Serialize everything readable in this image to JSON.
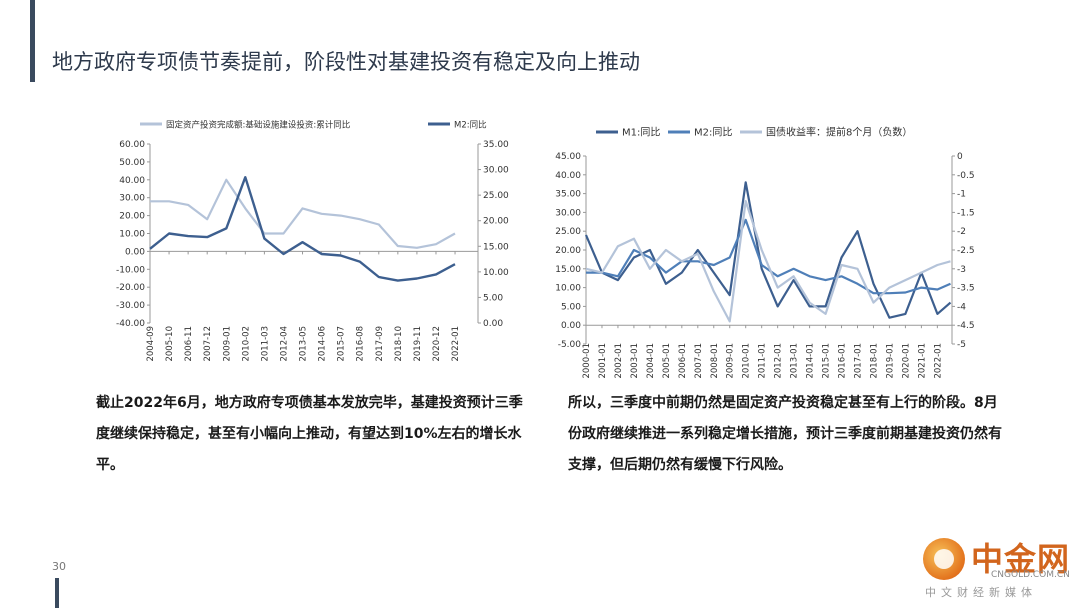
{
  "slide": {
    "title": "地方政府专项债节奏提前，阶段性对基建投资有稳定及向上推动",
    "page_number": "30",
    "paragraph_left": "截止2022年6月，地方政府专项债基本发放完毕，基建投资预计三季度继续保持稳定，甚至有小幅向上推动，有望达到10%左右的增长水平。",
    "paragraph_right": "所以，三季度中前期仍然是固定资产投资稳定甚至有上行的阶段。8月份政府继续推进一系列稳定增长措施，预计三季度前期基建投资仍然有支撑，但后期仍然有缓慢下行风险。"
  },
  "logo": {
    "name": "中金网",
    "url": "CNGOLD.COM.CN",
    "tagline": "中文财经新媒体"
  },
  "colors": {
    "dark_line": "#3d5f8f",
    "mid_line": "#4f7fb8",
    "light_line": "#b4c3d9",
    "accent": "#3a4a5e"
  },
  "chart_data": [
    {
      "type": "line",
      "legend_position": "top",
      "series": [
        {
          "name": "固定资产投资完成额:基础设施建设投资:累计同比",
          "axis": "left",
          "x": [
            "2004-09",
            "2005-10",
            "2006-11",
            "2007-12",
            "2009-01",
            "2010-02",
            "2011-03",
            "2012-04",
            "2013-05",
            "2014-06",
            "2015-07",
            "2016-08",
            "2017-09",
            "2018-10",
            "2019-11",
            "2020-12",
            "2022-01"
          ],
          "values": [
            28,
            28,
            26,
            18,
            40,
            24,
            10,
            10,
            24,
            21,
            20,
            18,
            15,
            3,
            2,
            4,
            10
          ]
        },
        {
          "name": "M2:同比",
          "axis": "right",
          "x": [
            "2004-09",
            "2005-10",
            "2006-11",
            "2007-12",
            "2009-01",
            "2010-02",
            "2011-03",
            "2012-04",
            "2013-05",
            "2014-06",
            "2015-07",
            "2016-08",
            "2017-09",
            "2018-10",
            "2019-11",
            "2020-12",
            "2022-01"
          ],
          "values": [
            14.5,
            17.5,
            17,
            16.8,
            18.5,
            28.5,
            16.5,
            13.5,
            15.8,
            13.5,
            13.2,
            12,
            9,
            8.3,
            8.7,
            9.5,
            11.5
          ]
        }
      ],
      "x_ticks": [
        "2004-09",
        "2005-10",
        "2006-11",
        "2007-12",
        "2009-01",
        "2010-02",
        "2011-03",
        "2012-04",
        "2013-05",
        "2014-06",
        "2015-07",
        "2016-08",
        "2017-09",
        "2018-10",
        "2019-11",
        "2020-12",
        "2022-01"
      ],
      "y_left": {
        "ticks": [
          "60.00",
          "50.00",
          "40.00",
          "30.00",
          "20.00",
          "10.00",
          "0.00",
          "-10.00",
          "-20.00",
          "-30.00",
          "-40.00"
        ],
        "ylim": [
          -40,
          60
        ]
      },
      "y_right": {
        "ticks": [
          "35.00",
          "30.00",
          "25.00",
          "20.00",
          "15.00",
          "10.00",
          "5.00",
          "0.00"
        ],
        "ylim": [
          0,
          35
        ]
      }
    },
    {
      "type": "line",
      "legend_position": "top",
      "series": [
        {
          "name": "M1:同比",
          "axis": "left",
          "x": [
            "2000-01",
            "2001-01",
            "2002-01",
            "2003-01",
            "2004-01",
            "2005-01",
            "2006-01",
            "2007-01",
            "2008-01",
            "2009-01",
            "2010-01",
            "2011-01",
            "2012-01",
            "2013-01",
            "2014-01",
            "2015-01",
            "2016-01",
            "2017-01",
            "2018-01",
            "2019-01",
            "2020-01",
            "2021-01",
            "2022-01",
            "2022-06"
          ],
          "values": [
            24,
            14,
            12,
            18,
            20,
            11,
            14,
            20,
            14,
            8,
            38,
            15,
            5,
            12,
            5,
            5,
            18,
            25,
            11,
            2,
            3,
            14,
            3,
            6
          ]
        },
        {
          "name": "M2:同比",
          "axis": "left",
          "x": [
            "2000-01",
            "2001-01",
            "2002-01",
            "2003-01",
            "2004-01",
            "2005-01",
            "2006-01",
            "2007-01",
            "2008-01",
            "2009-01",
            "2010-01",
            "2011-01",
            "2012-01",
            "2013-01",
            "2014-01",
            "2015-01",
            "2016-01",
            "2017-01",
            "2018-01",
            "2019-01",
            "2020-01",
            "2021-01",
            "2022-01",
            "2022-06"
          ],
          "values": [
            14,
            14,
            13,
            20,
            18,
            14,
            17,
            17,
            16,
            18,
            28,
            16,
            13,
            15,
            13,
            12,
            13,
            11,
            8.5,
            8.5,
            8.7,
            10,
            9.5,
            11
          ]
        },
        {
          "name": "国债收益率：提前8个月（负数）",
          "axis": "right",
          "x": [
            "2000-01",
            "2001-01",
            "2002-01",
            "2003-01",
            "2004-01",
            "2005-01",
            "2006-01",
            "2007-01",
            "2008-01",
            "2009-01",
            "2010-01",
            "2011-01",
            "2012-01",
            "2013-01",
            "2014-01",
            "2015-01",
            "2016-01",
            "2017-01",
            "2018-01",
            "2019-01",
            "2020-01",
            "2021-01",
            "2022-01",
            "2022-06"
          ],
          "values": [
            -3.0,
            -3.1,
            -2.4,
            -2.2,
            -3.0,
            -2.5,
            -2.8,
            -2.6,
            -3.6,
            -4.4,
            -1.2,
            -2.5,
            -3.5,
            -3.2,
            -3.9,
            -4.2,
            -2.9,
            -3.0,
            -3.9,
            -3.5,
            -3.3,
            -3.1,
            -2.9,
            -2.8
          ]
        }
      ],
      "x_ticks": [
        "2000-01",
        "2001-01",
        "2002-01",
        "2003-01",
        "2004-01",
        "2005-01",
        "2006-01",
        "2007-01",
        "2008-01",
        "2009-01",
        "2010-01",
        "2011-01",
        "2012-01",
        "2013-01",
        "2014-01",
        "2015-01",
        "2016-01",
        "2017-01",
        "2018-01",
        "2019-01",
        "2020-01",
        "2021-01",
        "2022-01"
      ],
      "y_left": {
        "ticks": [
          "45.00",
          "40.00",
          "35.00",
          "30.00",
          "25.00",
          "20.00",
          "15.00",
          "10.00",
          "5.00",
          "0.00",
          "-5.00"
        ],
        "ylim": [
          -5,
          45
        ]
      },
      "y_right": {
        "ticks": [
          "0",
          "-0.5",
          "-1",
          "-1.5",
          "-2",
          "-2.5",
          "-3",
          "-3.5",
          "-4",
          "-4.5",
          "-5"
        ],
        "ylim": [
          -5,
          0
        ]
      }
    }
  ]
}
